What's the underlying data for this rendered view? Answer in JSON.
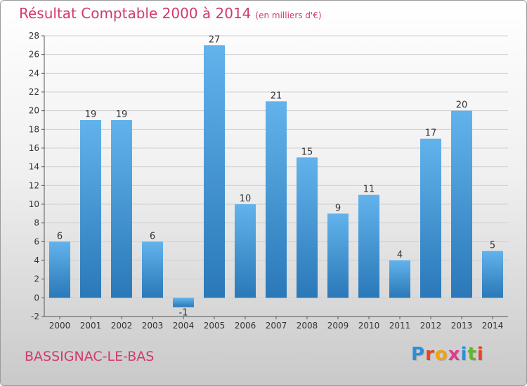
{
  "title": "Résultat Comptable 2000 à 2014",
  "unit_note": "(en milliers d'€)",
  "place_name": "BASSIGNAC-LE-BAS",
  "logo": {
    "text": "Proxiti",
    "letter_colors": [
      "#2e8fd6",
      "#e8421f",
      "#f2a20c",
      "#e03a8c",
      "#2e8fd6",
      "#63b52d",
      "#e8421f"
    ]
  },
  "colors": {
    "title": "#d23a6a",
    "bar_top": "#62b3ec",
    "bar_bottom": "#2a78b8",
    "axis": "#555555",
    "grid": "#cfcfcf"
  },
  "chart_data": {
    "type": "bar",
    "title": "Résultat Comptable 2000 à 2014",
    "categories": [
      "2000",
      "2001",
      "2002",
      "2003",
      "2004",
      "2005",
      "2006",
      "2007",
      "2008",
      "2009",
      "2010",
      "2011",
      "2012",
      "2013",
      "2014"
    ],
    "values": [
      6,
      19,
      19,
      6,
      -1,
      27,
      10,
      21,
      15,
      9,
      11,
      4,
      17,
      20,
      5
    ],
    "ylim": [
      -2,
      28
    ],
    "yticks": [
      -2,
      0,
      2,
      4,
      6,
      8,
      10,
      12,
      14,
      16,
      18,
      20,
      22,
      24,
      26,
      28
    ],
    "xlabel": "",
    "ylabel": "",
    "grid": true,
    "data_labels": true
  }
}
